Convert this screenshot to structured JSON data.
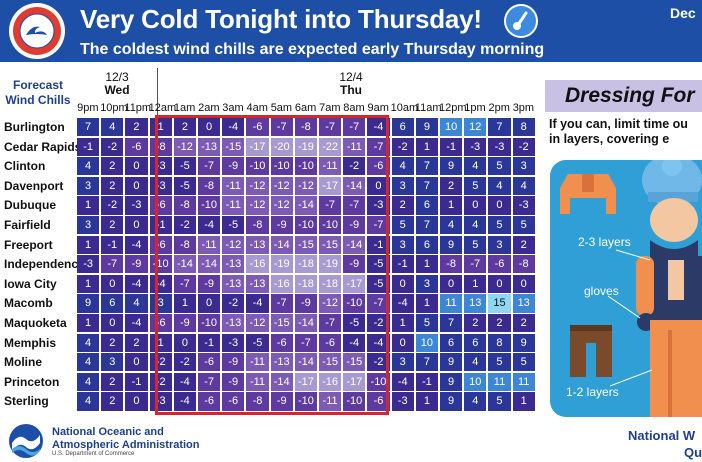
{
  "header": {
    "title": "Very Cold Tonight into Thursday!",
    "subtitle": "The coldest wind chills are expected early Thursday morning",
    "date_partial": "Dec",
    "logo_text": "NATIONAL WEATHER SERVICE"
  },
  "table": {
    "title_line1": "Forecast",
    "title_line2": "Wind Chills",
    "day1_date": "12/3",
    "day1_name": "Wed",
    "day2_date": "12/4",
    "day2_name": "Thu",
    "hours": [
      "9pm",
      "10pm",
      "11pm",
      "12am",
      "1am",
      "2am",
      "3am",
      "4am",
      "5am",
      "6am",
      "7am",
      "8am",
      "9am",
      "10am",
      "11am",
      "12pm",
      "1pm",
      "2pm",
      "3pm"
    ],
    "rows": [
      {
        "city": "Burlington",
        "values": [
          7,
          4,
          2,
          1,
          2,
          0,
          -4,
          -6,
          -7,
          -8,
          -7,
          -7,
          -4,
          6,
          9,
          10,
          12,
          7,
          8
        ]
      },
      {
        "city": "Cedar Rapids",
        "values": [
          -1,
          -2,
          -6,
          -8,
          -12,
          -13,
          -15,
          -17,
          -20,
          -19,
          -22,
          -11,
          -7,
          -2,
          1,
          -1,
          -3,
          -3,
          -2
        ]
      },
      {
        "city": "Clinton",
        "values": [
          4,
          2,
          0,
          -3,
          -5,
          -7,
          -9,
          -10,
          -10,
          -10,
          -11,
          -2,
          -6,
          4,
          7,
          9,
          4,
          5,
          3
        ]
      },
      {
        "city": "Davenport",
        "values": [
          3,
          2,
          0,
          -3,
          -5,
          -8,
          -11,
          -12,
          -12,
          -12,
          -17,
          -14,
          0,
          3,
          7,
          2,
          5,
          4,
          4
        ]
      },
      {
        "city": "Dubuque",
        "values": [
          1,
          -2,
          -3,
          -6,
          -8,
          -10,
          -11,
          -12,
          -12,
          -14,
          -7,
          -7,
          -3,
          2,
          6,
          1,
          0,
          0,
          -3
        ]
      },
      {
        "city": "Fairfield",
        "values": [
          3,
          2,
          0,
          -1,
          -2,
          -4,
          -5,
          -8,
          -9,
          -10,
          -10,
          -9,
          -7,
          5,
          7,
          4,
          4,
          5,
          5
        ]
      },
      {
        "city": "Freeport",
        "values": [
          1,
          -1,
          -4,
          -6,
          -8,
          -11,
          -12,
          -13,
          -14,
          -15,
          -15,
          -14,
          -1,
          3,
          6,
          9,
          5,
          3,
          2
        ]
      },
      {
        "city": "Independence",
        "values": [
          -3,
          -7,
          -9,
          -10,
          -14,
          -14,
          -13,
          -16,
          -19,
          -18,
          -19,
          -9,
          -5,
          -1,
          1,
          -8,
          -7,
          -6,
          -8
        ]
      },
      {
        "city": "Iowa City",
        "values": [
          1,
          0,
          -4,
          -4,
          -7,
          -9,
          -13,
          -13,
          -16,
          -18,
          -18,
          -17,
          -5,
          0,
          3,
          0,
          1,
          0,
          0
        ]
      },
      {
        "city": "Macomb",
        "values": [
          9,
          6,
          4,
          3,
          1,
          0,
          -2,
          -4,
          -7,
          -9,
          -12,
          -10,
          -7,
          -4,
          1,
          11,
          13,
          15,
          13
        ]
      },
      {
        "city": "Maquoketa",
        "values": [
          1,
          0,
          -4,
          -6,
          -9,
          -10,
          -13,
          -12,
          -15,
          -14,
          -7,
          -5,
          -2,
          1,
          5,
          7,
          2,
          2,
          2
        ]
      },
      {
        "city": "Memphis",
        "values": [
          4,
          2,
          2,
          1,
          0,
          -1,
          -3,
          -5,
          -6,
          -7,
          -6,
          -4,
          -4,
          0,
          10,
          6,
          6,
          8,
          9
        ]
      },
      {
        "city": "Moline",
        "values": [
          4,
          3,
          0,
          -2,
          -2,
          -6,
          -9,
          -11,
          -13,
          -14,
          -15,
          -15,
          -2,
          3,
          7,
          9,
          4,
          5,
          5
        ]
      },
      {
        "city": "Princeton",
        "values": [
          4,
          2,
          -1,
          -2,
          -4,
          -7,
          -9,
          -11,
          -14,
          -17,
          -16,
          -17,
          -10,
          -4,
          -1,
          9,
          10,
          11,
          11
        ]
      },
      {
        "city": "Sterling",
        "values": [
          4,
          2,
          0,
          -3,
          -4,
          -6,
          -6,
          -8,
          -9,
          -10,
          -11,
          -10,
          -6,
          -3,
          1,
          9,
          4,
          5,
          1
        ]
      }
    ]
  },
  "panel": {
    "title": "Dressing For",
    "text_line1": "If you can, limit time ou",
    "text_line2": "in layers, covering e",
    "label_layers_top": "2-3 layers",
    "label_gloves": "gloves",
    "label_layers_bottom": "1-2 layers"
  },
  "footer": {
    "noaa_line1": "National Oceanic and",
    "noaa_line2": "Atmospheric Administration",
    "noaa_sub": "U.S. Department of Commerce",
    "nws_line1": "National W",
    "nws_line2": "Qu"
  },
  "colors": {
    "header_bg": "#1e4fa6",
    "highlight_box": "#d8242b",
    "panel_title_bg": "#c9c1e3",
    "illustration_bg": "#2f9fd6"
  }
}
